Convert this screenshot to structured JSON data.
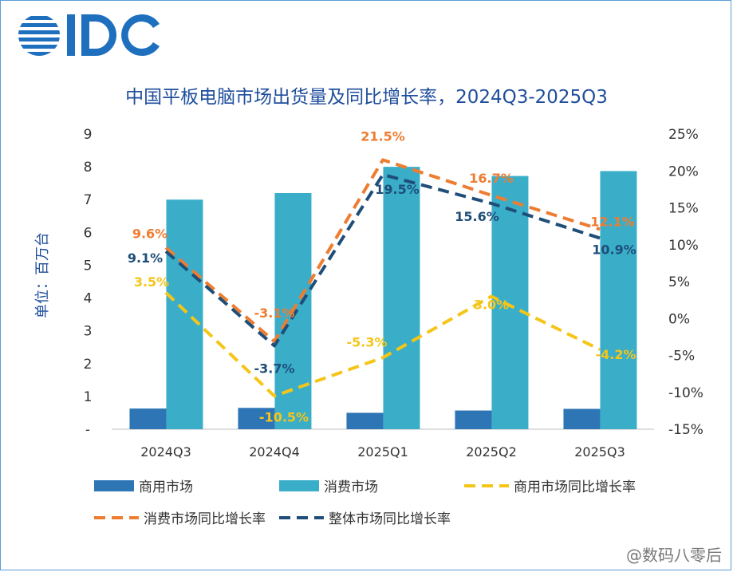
{
  "brand": {
    "logo_text": "IDC"
  },
  "watermark": "@数码八零后",
  "colors": {
    "commercial": "#2e75b6",
    "consumer": "#3aaec9",
    "commercial_growth": "#f5c518",
    "consumer_growth": "#ed7d31",
    "overall_growth": "#1f4e79",
    "title": "#1f4e9c"
  },
  "chart_data": {
    "type": "bar",
    "title": "中国平板电脑市场出货量及同比增长率，2024Q3-2025Q3",
    "ylabel": "单位：百万台",
    "categories": [
      "2024Q3",
      "2024Q4",
      "2025Q1",
      "2025Q2",
      "2025Q3"
    ],
    "ylim": [
      0,
      9
    ],
    "y_ticks": [
      "-",
      "1",
      "2",
      "3",
      "4",
      "5",
      "6",
      "7",
      "8",
      "9"
    ],
    "y2lim": [
      -15,
      25
    ],
    "y2_ticks": [
      "-15%",
      "-10%",
      "-5%",
      "0%",
      "5%",
      "10%",
      "15%",
      "20%",
      "25%"
    ],
    "grid": false,
    "legend_position": "bottom",
    "bar_series": [
      {
        "name": "商用市场",
        "values": [
          0.63,
          0.65,
          0.5,
          0.57,
          0.62
        ]
      },
      {
        "name": "消费市场",
        "values": [
          7.0,
          7.2,
          8.0,
          7.72,
          7.87
        ]
      }
    ],
    "line_series": [
      {
        "name": "商用市场同比增长率",
        "values": [
          3.5,
          -10.5,
          -5.3,
          3.0,
          -4.2
        ],
        "labels": [
          "3.5%",
          "-10.5%",
          "-5.3%",
          "3.0%",
          "-4.2%"
        ]
      },
      {
        "name": "消费市场同比增长率",
        "values": [
          9.6,
          -3.1,
          21.5,
          16.7,
          12.1
        ],
        "labels": [
          "9.6%",
          "-3.1%",
          "21.5%",
          "16.7%",
          "12.1%"
        ]
      },
      {
        "name": "整体市场同比增长率",
        "values": [
          9.1,
          -3.7,
          19.5,
          15.6,
          10.9
        ],
        "labels": [
          "9.1%",
          "-3.7%",
          "19.5%",
          "15.6%",
          "10.9%"
        ]
      }
    ],
    "legend": [
      "商用市场",
      "消费市场",
      "商用市场同比增长率",
      "消费市场同比增长率",
      "整体市场同比增长率"
    ]
  }
}
